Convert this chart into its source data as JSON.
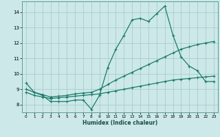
{
  "title": "",
  "xlabel": "Humidex (Indice chaleur)",
  "bg_color": "#cce8e8",
  "grid_color": "#aacccc",
  "line_color": "#1a7a6a",
  "x_ticks": [
    0,
    1,
    2,
    3,
    4,
    5,
    6,
    7,
    8,
    9,
    10,
    11,
    12,
    13,
    14,
    15,
    16,
    17,
    18,
    19,
    20,
    21,
    22,
    23
  ],
  "y_ticks": [
    8,
    9,
    10,
    11,
    12,
    13,
    14
  ],
  "ylim": [
    7.5,
    14.7
  ],
  "xlim": [
    -0.5,
    23.5
  ],
  "curve1_x": [
    0,
    1,
    2,
    3,
    4,
    5,
    6,
    7,
    8,
    9,
    10,
    11,
    12,
    13,
    14,
    15,
    16,
    17,
    18,
    19,
    20,
    21,
    22,
    23
  ],
  "curve1_y": [
    9.4,
    8.8,
    8.6,
    8.2,
    8.2,
    8.2,
    8.3,
    8.3,
    7.7,
    8.6,
    10.4,
    11.6,
    12.5,
    13.5,
    13.6,
    13.4,
    13.9,
    14.4,
    12.5,
    11.1,
    10.5,
    10.2,
    9.5,
    9.5
  ],
  "curve2_x": [
    0,
    1,
    2,
    3,
    4,
    5,
    6,
    7,
    8,
    9,
    10,
    11,
    12,
    13,
    14,
    15,
    16,
    17,
    18,
    19,
    20,
    21,
    22,
    23
  ],
  "curve2_y": [
    9.0,
    8.8,
    8.65,
    8.5,
    8.55,
    8.6,
    8.7,
    8.75,
    8.8,
    9.0,
    9.3,
    9.6,
    9.85,
    10.1,
    10.35,
    10.6,
    10.85,
    11.1,
    11.35,
    11.6,
    11.75,
    11.9,
    12.0,
    12.1
  ],
  "curve3_x": [
    0,
    1,
    2,
    3,
    4,
    5,
    6,
    7,
    8,
    9,
    10,
    11,
    12,
    13,
    14,
    15,
    16,
    17,
    18,
    19,
    20,
    21,
    22,
    23
  ],
  "curve3_y": [
    8.8,
    8.6,
    8.5,
    8.4,
    8.45,
    8.5,
    8.55,
    8.6,
    8.65,
    8.7,
    8.8,
    8.9,
    9.0,
    9.1,
    9.2,
    9.3,
    9.4,
    9.5,
    9.6,
    9.65,
    9.7,
    9.75,
    9.8,
    9.85
  ]
}
